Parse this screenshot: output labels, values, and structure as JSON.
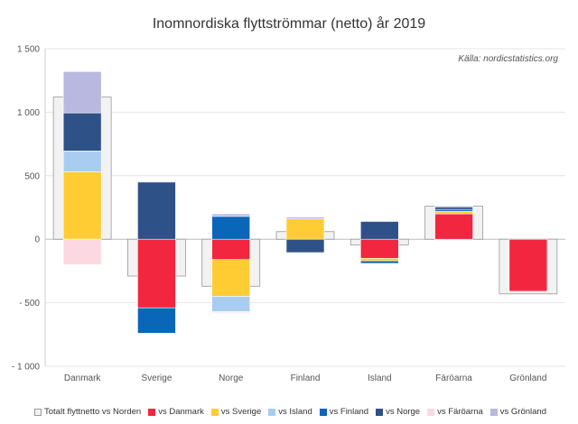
{
  "chart_data": {
    "type": "bar",
    "title": "Inomnordiska flyttströmmar (netto) år 2019",
    "source_note": "Källa: nordicstatistics.org",
    "categories": [
      "Danmark",
      "Sverige",
      "Norge",
      "Finland",
      "Island",
      "Färöarna",
      "Grönland"
    ],
    "ylim": [
      -1000,
      1500
    ],
    "yticks": [
      -1000,
      -500,
      0,
      500,
      1000,
      1500
    ],
    "ytick_labels": [
      "- 1 000",
      "- 500",
      "0",
      "500",
      "1 000",
      "1 500"
    ],
    "grid": true,
    "legend_placement": "bottom",
    "total": {
      "name": "Totalt flyttnetto vs Norden",
      "color": "#f2f2f2",
      "values": [
        1120,
        -290,
        -370,
        60,
        -45,
        260,
        -430
      ]
    },
    "series": [
      {
        "name": "vs Danmark",
        "color": "#f2263f",
        "values": [
          0,
          -540,
          -160,
          0,
          -150,
          200,
          -410
        ]
      },
      {
        "name": "vs Sverige",
        "color": "#ffcc33",
        "values": [
          530,
          0,
          -290,
          160,
          -20,
          20,
          0
        ]
      },
      {
        "name": "vs Island",
        "color": "#a9cdf0",
        "values": [
          165,
          0,
          -120,
          0,
          0,
          0,
          0
        ]
      },
      {
        "name": "vs Finland",
        "color": "#0a66b8",
        "values": [
          0,
          -200,
          180,
          0,
          -20,
          15,
          0
        ]
      },
      {
        "name": "vs Norge",
        "color": "#2e5288",
        "values": [
          300,
          450,
          0,
          -105,
          140,
          20,
          0
        ]
      },
      {
        "name": "vs Färöarna",
        "color": "#fcd9e2",
        "values": [
          -200,
          0,
          -10,
          0,
          0,
          0,
          -10
        ]
      },
      {
        "name": "vs Grönland",
        "color": "#b8b8e0",
        "values": [
          325,
          0,
          20,
          15,
          0,
          5,
          0
        ]
      }
    ]
  }
}
